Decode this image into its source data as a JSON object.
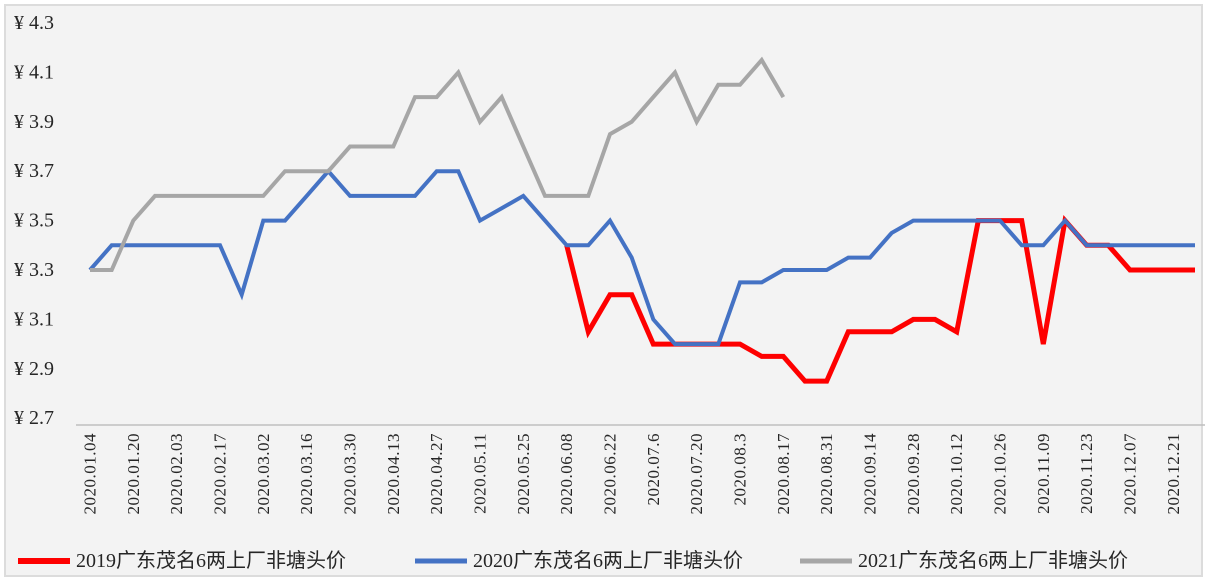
{
  "chart_data": {
    "type": "line",
    "title": "",
    "grid": false,
    "legend_position": "bottom",
    "currency_prefix": "¥",
    "y_axis": {
      "min": 2.7,
      "max": 4.3,
      "step": 0.2,
      "ticks": [
        {
          "label": "¥ 4.3",
          "value": 4.3
        },
        {
          "label": "¥ 4.1",
          "value": 4.1
        },
        {
          "label": "¥ 3.9",
          "value": 3.9
        },
        {
          "label": "¥ 3.7",
          "value": 3.7
        },
        {
          "label": "¥ 3.5",
          "value": 3.5
        },
        {
          "label": "¥ 3.3",
          "value": 3.3
        },
        {
          "label": "¥ 3.1",
          "value": 3.1
        },
        {
          "label": "¥ 2.9",
          "value": 2.9
        },
        {
          "label": "¥ 2.7",
          "value": 2.7
        }
      ]
    },
    "x_labels": [
      "2020.01.04",
      "2020.01.20",
      "2020.02.03",
      "2020.02.17",
      "2020.03.02",
      "2020.03.16",
      "2020.03.30",
      "2020.04.13",
      "2020.04.27",
      "2020.05.11",
      "2020.05.25",
      "2020.06.08",
      "2020.06.22",
      "2020.07.6",
      "2020.07.20",
      "2020.08.3",
      "2020.08.17",
      "2020.08.31",
      "2020.09.14",
      "2020.09.28",
      "2020.10.12",
      "2020.10.26",
      "2020.11.09",
      "2020.11.23",
      "2020.12.07",
      "2020.12.21"
    ],
    "points_per_label_interval": 2,
    "total_points": 52,
    "series": [
      {
        "name": "2019广东茂名6两上厂非塘头价",
        "color": "#fe0000",
        "stroke_width": 5,
        "start_index": 22,
        "values": [
          3.4,
          3.05,
          3.2,
          3.2,
          3.0,
          3.0,
          3.0,
          3.0,
          3.0,
          2.95,
          2.95,
          2.85,
          2.85,
          3.05,
          3.05,
          3.05,
          3.1,
          3.1,
          3.05,
          3.5,
          3.5,
          3.5,
          3.0,
          3.5,
          3.4,
          3.4,
          3.3,
          3.3,
          3.3,
          3.3
        ]
      },
      {
        "name": "2020广东茂名6两上厂非塘头价",
        "color": "#4472c4",
        "stroke_width": 4,
        "start_index": 0,
        "values": [
          3.3,
          3.4,
          3.4,
          3.4,
          3.4,
          3.4,
          3.4,
          3.2,
          3.5,
          3.5,
          3.6,
          3.7,
          3.6,
          3.6,
          3.6,
          3.6,
          3.7,
          3.7,
          3.5,
          3.55,
          3.6,
          3.5,
          3.4,
          3.4,
          3.5,
          3.35,
          3.1,
          3.0,
          3.0,
          3.0,
          3.25,
          3.25,
          3.3,
          3.3,
          3.3,
          3.35,
          3.35,
          3.45,
          3.5,
          3.5,
          3.5,
          3.5,
          3.5,
          3.4,
          3.4,
          3.5,
          3.4,
          3.4,
          3.4,
          3.4,
          3.4,
          3.4
        ]
      },
      {
        "name": "2021广东茂名6两上厂非塘头价",
        "color": "#a6a6a6",
        "stroke_width": 4,
        "start_index": 0,
        "values": [
          3.3,
          3.3,
          3.5,
          3.6,
          3.6,
          3.6,
          3.6,
          3.6,
          3.6,
          3.7,
          3.7,
          3.7,
          3.8,
          3.8,
          3.8,
          4.0,
          4.0,
          4.1,
          3.9,
          4.0,
          3.8,
          3.6,
          3.6,
          3.6,
          3.85,
          3.9,
          4.0,
          4.1,
          3.9,
          4.05,
          4.05,
          4.15,
          4.0
        ]
      }
    ]
  }
}
